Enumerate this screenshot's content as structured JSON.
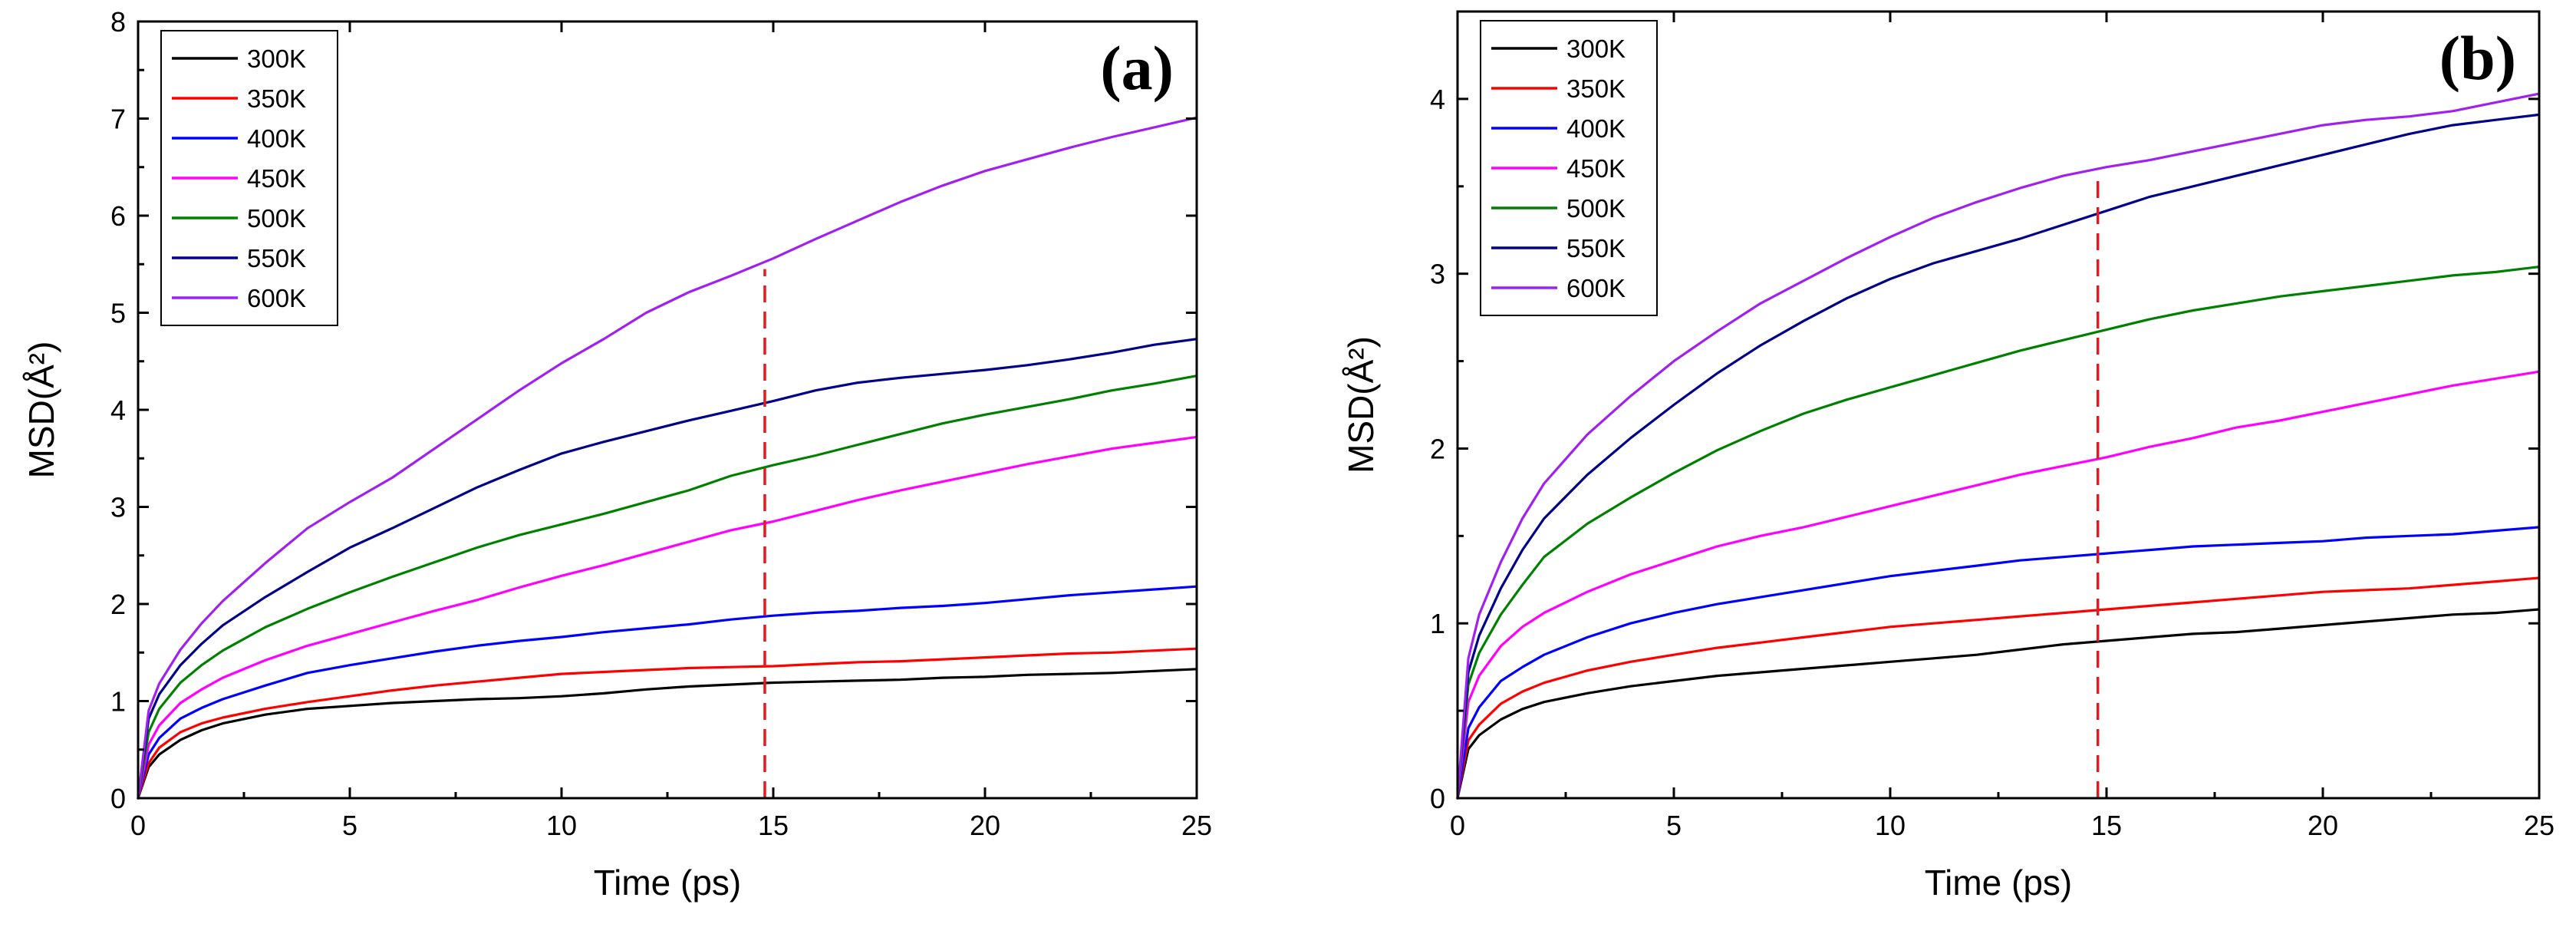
{
  "chart_data": [
    {
      "type": "line",
      "panel_label": "(a)",
      "xlabel": "Time (ps)",
      "ylabel": "MSD(Å²)",
      "xlim": [
        0,
        25
      ],
      "ylim": [
        0,
        8
      ],
      "xticks": [
        0,
        5,
        10,
        15,
        20,
        25
      ],
      "yticks": [
        0,
        1,
        2,
        3,
        4,
        5,
        6,
        7,
        8
      ],
      "x": [
        0,
        0.25,
        0.5,
        1,
        1.5,
        2,
        3,
        4,
        5,
        6,
        7,
        8,
        9,
        10,
        11,
        12,
        13,
        14,
        15,
        16,
        17,
        18,
        19,
        20,
        21,
        22,
        23,
        24,
        25
      ],
      "legend_position": "top-left",
      "grid": false,
      "reference_line": {
        "x": 14.8,
        "y_from": 0,
        "y_to": 5.45,
        "color": "#e41a1c",
        "style": "dashed"
      },
      "series": [
        {
          "name": "300K",
          "color": "#000000",
          "values": [
            0,
            0.32,
            0.45,
            0.6,
            0.7,
            0.77,
            0.86,
            0.92,
            0.95,
            0.98,
            1.0,
            1.02,
            1.03,
            1.05,
            1.08,
            1.12,
            1.15,
            1.17,
            1.19,
            1.2,
            1.21,
            1.22,
            1.24,
            1.25,
            1.27,
            1.28,
            1.29,
            1.31,
            1.33
          ]
        },
        {
          "name": "350K",
          "color": "#ff0000",
          "values": [
            0,
            0.36,
            0.52,
            0.68,
            0.77,
            0.83,
            0.92,
            0.99,
            1.05,
            1.11,
            1.16,
            1.2,
            1.24,
            1.28,
            1.3,
            1.32,
            1.34,
            1.35,
            1.36,
            1.38,
            1.4,
            1.41,
            1.43,
            1.45,
            1.47,
            1.49,
            1.5,
            1.52,
            1.54
          ]
        },
        {
          "name": "400K",
          "color": "#0000ff",
          "values": [
            0,
            0.45,
            0.62,
            0.82,
            0.93,
            1.02,
            1.16,
            1.29,
            1.37,
            1.44,
            1.51,
            1.57,
            1.62,
            1.66,
            1.71,
            1.75,
            1.79,
            1.84,
            1.88,
            1.91,
            1.93,
            1.96,
            1.98,
            2.01,
            2.05,
            2.09,
            2.12,
            2.15,
            2.18
          ]
        },
        {
          "name": "450K",
          "color": "#ff00ff",
          "values": [
            0,
            0.55,
            0.75,
            0.98,
            1.12,
            1.24,
            1.42,
            1.57,
            1.69,
            1.81,
            1.93,
            2.04,
            2.17,
            2.29,
            2.4,
            2.52,
            2.64,
            2.76,
            2.85,
            2.96,
            3.07,
            3.17,
            3.26,
            3.35,
            3.44,
            3.52,
            3.6,
            3.66,
            3.72
          ]
        },
        {
          "name": "500K",
          "color": "#008000",
          "values": [
            0,
            0.68,
            0.92,
            1.19,
            1.37,
            1.52,
            1.76,
            1.95,
            2.12,
            2.28,
            2.43,
            2.58,
            2.71,
            2.82,
            2.93,
            3.05,
            3.17,
            3.32,
            3.43,
            3.53,
            3.64,
            3.75,
            3.86,
            3.95,
            4.03,
            4.11,
            4.2,
            4.27,
            4.35
          ]
        },
        {
          "name": "550K",
          "color": "#00008b",
          "values": [
            0,
            0.82,
            1.07,
            1.37,
            1.59,
            1.78,
            2.07,
            2.33,
            2.58,
            2.78,
            2.99,
            3.2,
            3.38,
            3.55,
            3.67,
            3.78,
            3.89,
            3.99,
            4.09,
            4.2,
            4.28,
            4.33,
            4.37,
            4.41,
            4.46,
            4.52,
            4.59,
            4.67,
            4.73
          ]
        },
        {
          "name": "600K",
          "color": "#a020f0",
          "values": [
            0,
            0.9,
            1.18,
            1.53,
            1.8,
            2.03,
            2.42,
            2.78,
            3.05,
            3.3,
            3.6,
            3.9,
            4.2,
            4.48,
            4.73,
            5.0,
            5.21,
            5.38,
            5.56,
            5.76,
            5.95,
            6.14,
            6.31,
            6.46,
            6.58,
            6.7,
            6.81,
            6.91,
            7.01
          ]
        }
      ]
    },
    {
      "type": "line",
      "panel_label": "(b)",
      "xlabel": "Time (ps)",
      "ylabel": "MSD(Å²)",
      "xlim": [
        0,
        25
      ],
      "ylim": [
        0,
        4.5
      ],
      "xticks": [
        0,
        5,
        10,
        15,
        20,
        25
      ],
      "yticks": [
        0,
        1,
        2,
        3,
        4
      ],
      "x": [
        0,
        0.25,
        0.5,
        1,
        1.5,
        2,
        3,
        4,
        5,
        6,
        7,
        8,
        9,
        10,
        11,
        12,
        13,
        14,
        15,
        16,
        17,
        18,
        19,
        20,
        21,
        22,
        23,
        24,
        25
      ],
      "legend_position": "top-left",
      "grid": false,
      "reference_line": {
        "x": 14.8,
        "y_from": 0,
        "y_to": 3.55,
        "color": "#e41a1c",
        "style": "dashed"
      },
      "series": [
        {
          "name": "300K",
          "color": "#000000",
          "values": [
            0,
            0.28,
            0.36,
            0.45,
            0.51,
            0.55,
            0.6,
            0.64,
            0.67,
            0.7,
            0.72,
            0.74,
            0.76,
            0.78,
            0.8,
            0.82,
            0.85,
            0.88,
            0.9,
            0.92,
            0.94,
            0.95,
            0.97,
            0.99,
            1.01,
            1.03,
            1.05,
            1.06,
            1.08
          ]
        },
        {
          "name": "350K",
          "color": "#ff0000",
          "values": [
            0,
            0.33,
            0.42,
            0.54,
            0.61,
            0.66,
            0.73,
            0.78,
            0.82,
            0.86,
            0.89,
            0.92,
            0.95,
            0.98,
            1.0,
            1.02,
            1.04,
            1.06,
            1.08,
            1.1,
            1.12,
            1.14,
            1.16,
            1.18,
            1.19,
            1.2,
            1.22,
            1.24,
            1.26
          ]
        },
        {
          "name": "400K",
          "color": "#0000ff",
          "values": [
            0,
            0.4,
            0.52,
            0.67,
            0.75,
            0.82,
            0.92,
            1.0,
            1.06,
            1.11,
            1.15,
            1.19,
            1.23,
            1.27,
            1.3,
            1.33,
            1.36,
            1.38,
            1.4,
            1.42,
            1.44,
            1.45,
            1.46,
            1.47,
            1.49,
            1.5,
            1.51,
            1.53,
            1.55
          ]
        },
        {
          "name": "450K",
          "color": "#ff00ff",
          "values": [
            0,
            0.55,
            0.7,
            0.87,
            0.98,
            1.06,
            1.18,
            1.28,
            1.36,
            1.44,
            1.5,
            1.55,
            1.61,
            1.67,
            1.73,
            1.79,
            1.85,
            1.9,
            1.95,
            2.01,
            2.06,
            2.12,
            2.16,
            2.21,
            2.26,
            2.31,
            2.36,
            2.4,
            2.44
          ]
        },
        {
          "name": "500K",
          "color": "#008000",
          "values": [
            0,
            0.65,
            0.83,
            1.05,
            1.22,
            1.38,
            1.57,
            1.72,
            1.86,
            1.99,
            2.1,
            2.2,
            2.28,
            2.35,
            2.42,
            2.49,
            2.56,
            2.62,
            2.68,
            2.74,
            2.79,
            2.83,
            2.87,
            2.9,
            2.93,
            2.96,
            2.99,
            3.01,
            3.04
          ]
        },
        {
          "name": "550K",
          "color": "#00008b",
          "values": [
            0,
            0.72,
            0.93,
            1.2,
            1.42,
            1.6,
            1.85,
            2.06,
            2.25,
            2.43,
            2.59,
            2.73,
            2.86,
            2.97,
            3.06,
            3.13,
            3.2,
            3.28,
            3.36,
            3.44,
            3.5,
            3.56,
            3.62,
            3.68,
            3.74,
            3.8,
            3.85,
            3.88,
            3.91
          ]
        },
        {
          "name": "600K",
          "color": "#a020f0",
          "values": [
            0,
            0.8,
            1.05,
            1.35,
            1.6,
            1.8,
            2.08,
            2.3,
            2.5,
            2.67,
            2.83,
            2.96,
            3.09,
            3.21,
            3.32,
            3.41,
            3.49,
            3.56,
            3.61,
            3.65,
            3.7,
            3.75,
            3.8,
            3.85,
            3.88,
            3.9,
            3.93,
            3.98,
            4.03
          ]
        }
      ]
    }
  ]
}
